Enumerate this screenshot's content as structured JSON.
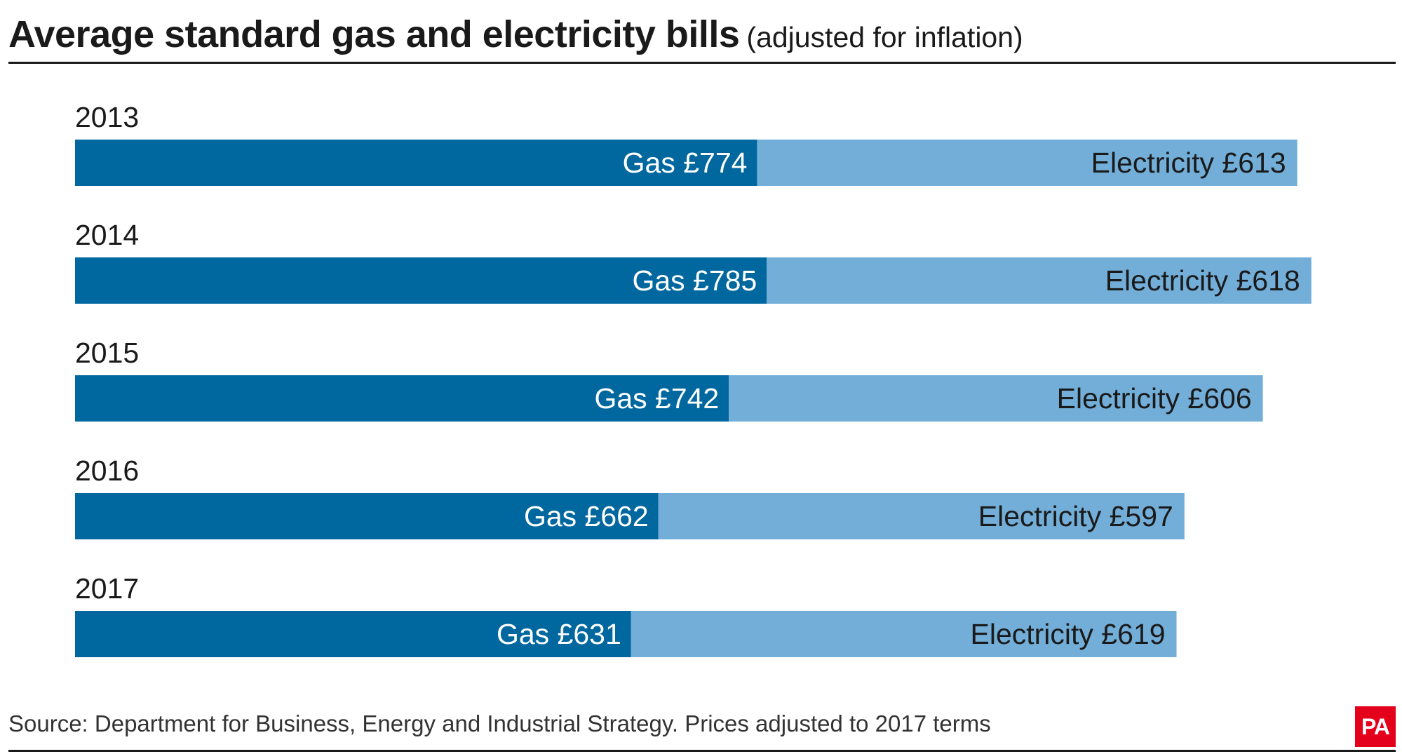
{
  "header": {
    "title": "Average standard gas and electricity bills",
    "subtitle": "(adjusted for inflation)"
  },
  "footer": {
    "source": "Source: Department for Business, Energy and Industrial Strategy. Prices adjusted to 2017 terms",
    "logo": "PA"
  },
  "colors": {
    "gas": "#00679f",
    "electricity": "#72aed8",
    "gas_text": "#ffffff",
    "electricity_text": "#1a1a1a",
    "logo_bg": "#e4001b"
  },
  "chart_data": {
    "type": "bar",
    "orientation": "horizontal",
    "stacked": true,
    "title": "Average standard gas and electricity bills",
    "subtitle": "(adjusted for inflation)",
    "categories": [
      "2013",
      "2014",
      "2015",
      "2016",
      "2017"
    ],
    "series": [
      {
        "name": "Gas",
        "values": [
          774,
          785,
          742,
          662,
          631
        ],
        "labels": [
          "Gas £774",
          "Gas £785",
          "Gas £742",
          "Gas £662",
          "Gas £631"
        ]
      },
      {
        "name": "Electricity",
        "values": [
          613,
          618,
          606,
          597,
          619
        ],
        "labels": [
          "Electricity £613",
          "Electricity £618",
          "Electricity £606",
          "Electricity £597",
          "Electricity £619"
        ]
      }
    ],
    "units": "£",
    "grid": false,
    "legend": "none"
  }
}
